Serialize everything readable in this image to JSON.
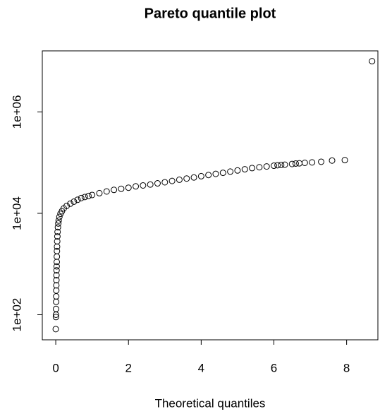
{
  "chart_data": {
    "type": "scatter",
    "title": "Pareto quantile plot",
    "x_label": "Theoretical quantiles",
    "log_y": true,
    "color": "#000000",
    "xlim": [
      -0.37,
      8.86
    ],
    "ylim": [
      32,
      16000000
    ],
    "xticks": [
      0,
      2,
      4,
      6,
      8
    ],
    "yticks": [
      {
        "value": 100,
        "label": "1e+02"
      },
      {
        "value": 10000,
        "label": "1e+04"
      },
      {
        "value": 1000000,
        "label": "1e+06"
      }
    ],
    "x": [
      0.0,
      0.005,
      0.006,
      0.008,
      0.01,
      0.012,
      0.014,
      0.016,
      0.018,
      0.02,
      0.022,
      0.025,
      0.028,
      0.03,
      0.033,
      0.036,
      0.04,
      0.045,
      0.05,
      0.06,
      0.07,
      0.08,
      0.1,
      0.13,
      0.17,
      0.22,
      0.3,
      0.4,
      0.5,
      0.6,
      0.7,
      0.8,
      0.9,
      1.0,
      1.2,
      1.4,
      1.6,
      1.8,
      2.0,
      2.2,
      2.4,
      2.6,
      2.8,
      3.0,
      3.2,
      3.4,
      3.6,
      3.8,
      4.0,
      4.2,
      4.4,
      4.6,
      4.8,
      5.0,
      5.2,
      5.4,
      5.6,
      5.8,
      6.0,
      6.1,
      6.2,
      6.3,
      6.5,
      6.6,
      6.7,
      6.85,
      7.05,
      7.3,
      7.6,
      7.95,
      8.7
    ],
    "values": [
      52,
      90,
      100,
      130,
      180,
      230,
      300,
      380,
      480,
      600,
      750,
      900,
      1100,
      1400,
      1800,
      2200,
      2800,
      3500,
      4300,
      5300,
      6300,
      7200,
      8500,
      9800,
      11000,
      12500,
      14000,
      15500,
      17000,
      18500,
      20000,
      21000,
      22000,
      23000,
      25000,
      27000,
      29000,
      30500,
      32000,
      34000,
      35500,
      37000,
      39000,
      41000,
      43500,
      46000,
      48500,
      51000,
      54000,
      57000,
      60000,
      63000,
      66500,
      70000,
      74000,
      78000,
      81000,
      84000,
      87000,
      89000,
      90000,
      91000,
      94000,
      96000,
      97000,
      99000,
      101000,
      104000,
      110000,
      112000,
      10000000
    ]
  }
}
